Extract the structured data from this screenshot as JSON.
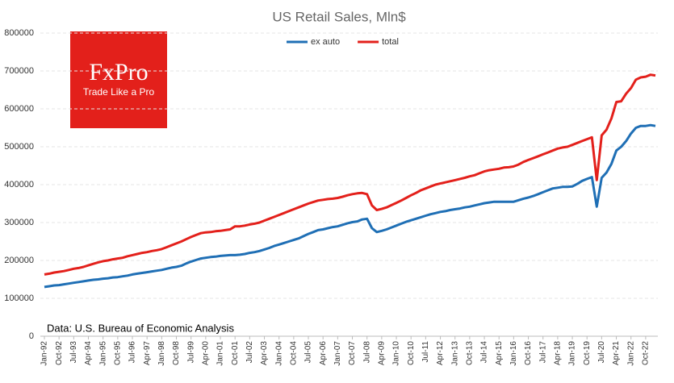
{
  "chart_data": {
    "type": "line",
    "title": "US Retail Sales, Mln$",
    "annotation": "Data: U.S. Bureau of Economic Analysis",
    "logo": {
      "brand": "FxPro",
      "tagline": "Trade Like a Pro"
    },
    "categories": [
      "Jan-92",
      null,
      null,
      "Oct-92",
      null,
      null,
      "Jul-93",
      null,
      null,
      "Apr-94",
      null,
      null,
      "Jan-95",
      null,
      null,
      "Oct-95",
      null,
      null,
      "Jul-96",
      null,
      null,
      "Apr-97",
      null,
      null,
      "Jan-98",
      null,
      null,
      "Oct-98",
      null,
      null,
      "Jul-99",
      null,
      null,
      "Apr-00",
      null,
      null,
      "Jan-01",
      null,
      null,
      "Oct-01",
      null,
      null,
      "Jul-02",
      null,
      null,
      "Apr-03",
      null,
      null,
      "Jan-04",
      null,
      null,
      "Oct-04",
      null,
      null,
      "Jul-05",
      null,
      null,
      "Apr-06",
      null,
      null,
      "Jan-07",
      null,
      null,
      "Oct-07",
      null,
      null,
      "Jul-08",
      null,
      null,
      "Apr-09",
      null,
      null,
      "Jan-10",
      null,
      null,
      "Oct-10",
      null,
      null,
      "Jul-11",
      null,
      null,
      "Apr-12",
      null,
      null,
      "Jan-13",
      null,
      null,
      "Oct-13",
      null,
      null,
      "Jul-14",
      null,
      null,
      "Apr-15",
      null,
      null,
      "Jan-16",
      null,
      null,
      "Oct-16",
      null,
      null,
      "Jul-17",
      null,
      null,
      "Apr-18",
      null,
      null,
      "Jan-19",
      null,
      null,
      "Oct-19",
      null,
      null,
      "Jul-20",
      null,
      null,
      "Apr-21",
      null,
      null,
      "Jan-22",
      null,
      null,
      "Oct-22",
      null,
      null
    ],
    "series": [
      {
        "name": "ex auto",
        "color": "#1f6fb5",
        "values": [
          130000,
          132000,
          134000,
          135000,
          137000,
          139000,
          141000,
          143000,
          145000,
          147000,
          149000,
          150000,
          152000,
          153000,
          155000,
          156000,
          158000,
          160000,
          163000,
          165000,
          167000,
          169000,
          171000,
          173000,
          175000,
          178000,
          181000,
          183000,
          186000,
          192000,
          197000,
          201000,
          205000,
          207000,
          209000,
          210000,
          212000,
          213000,
          214000,
          214000,
          215000,
          217000,
          220000,
          222000,
          225000,
          229000,
          233000,
          238000,
          242000,
          246000,
          250000,
          254000,
          258000,
          264000,
          270000,
          275000,
          280000,
          282000,
          285000,
          288000,
          290000,
          294000,
          298000,
          301000,
          303000,
          308000,
          310000,
          285000,
          275000,
          278000,
          282000,
          287000,
          292000,
          297000,
          302000,
          306000,
          310000,
          314000,
          318000,
          322000,
          325000,
          328000,
          330000,
          333000,
          335000,
          337000,
          340000,
          342000,
          345000,
          348000,
          351000,
          353000,
          355000,
          355000,
          355000,
          355000,
          355000,
          359000,
          363000,
          366000,
          370000,
          375000,
          380000,
          385000,
          390000,
          392000,
          394000,
          394000,
          395000,
          402000,
          410000,
          415000,
          420000,
          342000,
          418000,
          432000,
          455000,
          490000,
          500000,
          515000,
          535000,
          550000,
          555000,
          555000,
          557000,
          555000
        ]
      },
      {
        "name": "total",
        "color": "#e3201b",
        "values": [
          163000,
          165000,
          168000,
          170000,
          172000,
          175000,
          178000,
          180000,
          183000,
          187000,
          191000,
          195000,
          198000,
          200000,
          203000,
          205000,
          207000,
          211000,
          214000,
          217000,
          220000,
          222000,
          225000,
          227000,
          230000,
          235000,
          240000,
          245000,
          250000,
          256000,
          262000,
          267000,
          272000,
          274000,
          275000,
          277000,
          278000,
          280000,
          282000,
          290000,
          290000,
          292000,
          295000,
          297000,
          300000,
          305000,
          310000,
          315000,
          320000,
          325000,
          330000,
          335000,
          340000,
          345000,
          350000,
          354000,
          358000,
          360000,
          362000,
          363000,
          365000,
          368000,
          372000,
          375000,
          377000,
          378000,
          375000,
          345000,
          333000,
          336000,
          340000,
          346000,
          352000,
          358000,
          365000,
          372000,
          378000,
          385000,
          390000,
          395000,
          400000,
          403000,
          406000,
          409000,
          412000,
          415000,
          418000,
          422000,
          425000,
          430000,
          435000,
          438000,
          440000,
          442000,
          445000,
          446000,
          448000,
          453000,
          460000,
          465000,
          470000,
          475000,
          480000,
          485000,
          490000,
          495000,
          498000,
          500000,
          505000,
          510000,
          515000,
          520000,
          525000,
          412000,
          530000,
          545000,
          575000,
          618000,
          620000,
          640000,
          655000,
          677000,
          683000,
          685000,
          690000,
          688000
        ]
      }
    ],
    "ylim": [
      0,
      800000
    ],
    "yticks": [
      0,
      100000,
      200000,
      300000,
      400000,
      500000,
      600000,
      700000,
      800000
    ],
    "grid": true,
    "legend": "top"
  }
}
